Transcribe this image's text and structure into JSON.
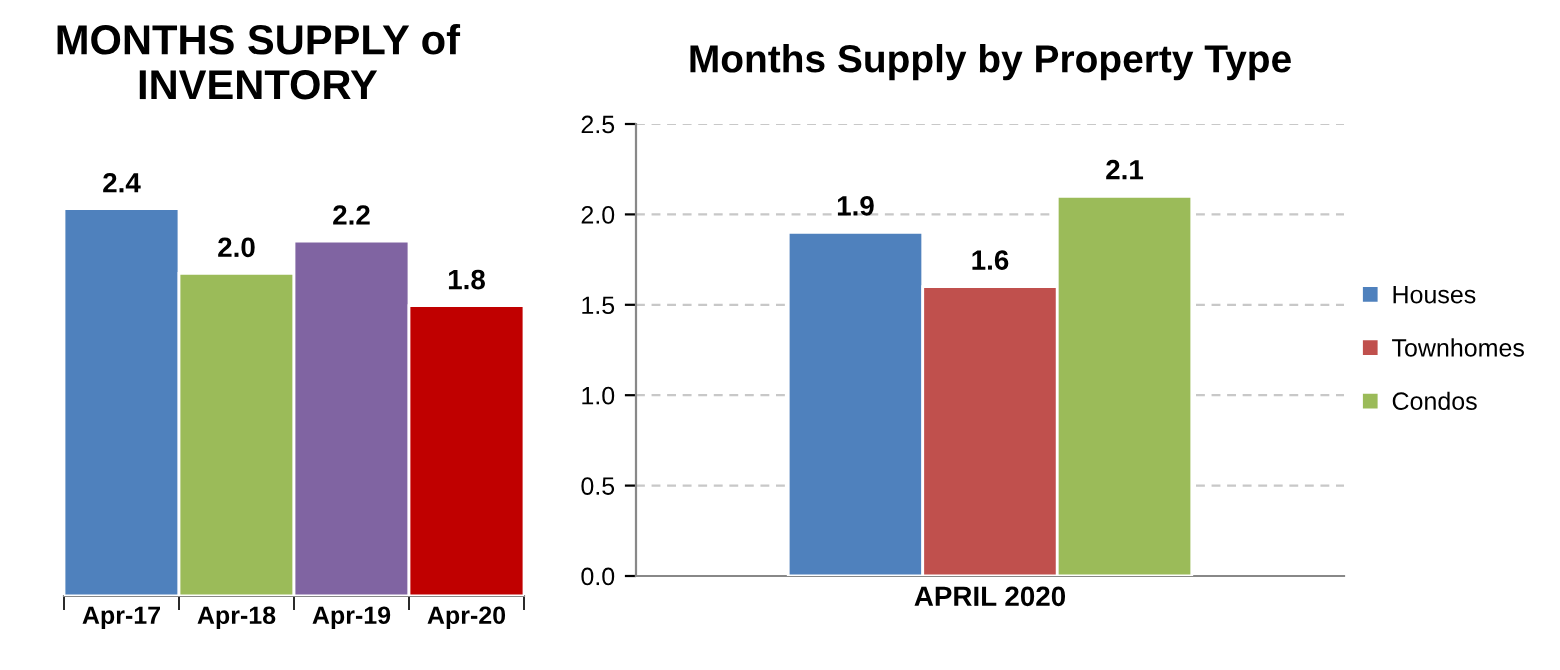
{
  "chart_data": [
    {
      "type": "bar",
      "title": "MONTHS SUPPLY of INVENTORY",
      "categories": [
        "Apr-17",
        "Apr-18",
        "Apr-19",
        "Apr-20"
      ],
      "values": [
        2.4,
        2.0,
        2.2,
        1.8
      ],
      "value_labels": [
        "2.4",
        "2.0",
        "2.2",
        "1.8"
      ],
      "colors": [
        "#4f81bd",
        "#9bbb59",
        "#8064a2",
        "#c00000"
      ],
      "tick_labels": "x",
      "grid": false,
      "legend": false
    },
    {
      "type": "bar",
      "title": "Months Supply by Property Type",
      "categories": [
        "APRIL 2020"
      ],
      "series": [
        {
          "name": "Houses",
          "color": "#4f81bd",
          "values": [
            1.9
          ],
          "value_labels": [
            "1.9"
          ]
        },
        {
          "name": "Townhomes",
          "color": "#c0504d",
          "values": [
            1.6
          ],
          "value_labels": [
            "1.6"
          ]
        },
        {
          "name": "Condos",
          "color": "#9bbb59",
          "values": [
            2.1
          ],
          "value_labels": [
            "2.1"
          ]
        }
      ],
      "ylim": [
        0,
        2.5
      ],
      "yticks": [
        {
          "value": 0,
          "label": "0.0"
        },
        {
          "value": 0.5,
          "label": "0.5"
        },
        {
          "value": 1,
          "label": "1.0"
        },
        {
          "value": 1.5,
          "label": "1.5"
        },
        {
          "value": 2,
          "label": "2.0"
        },
        {
          "value": 2.5,
          "label": "2.5"
        }
      ],
      "grid": "y",
      "legend": "right"
    }
  ]
}
